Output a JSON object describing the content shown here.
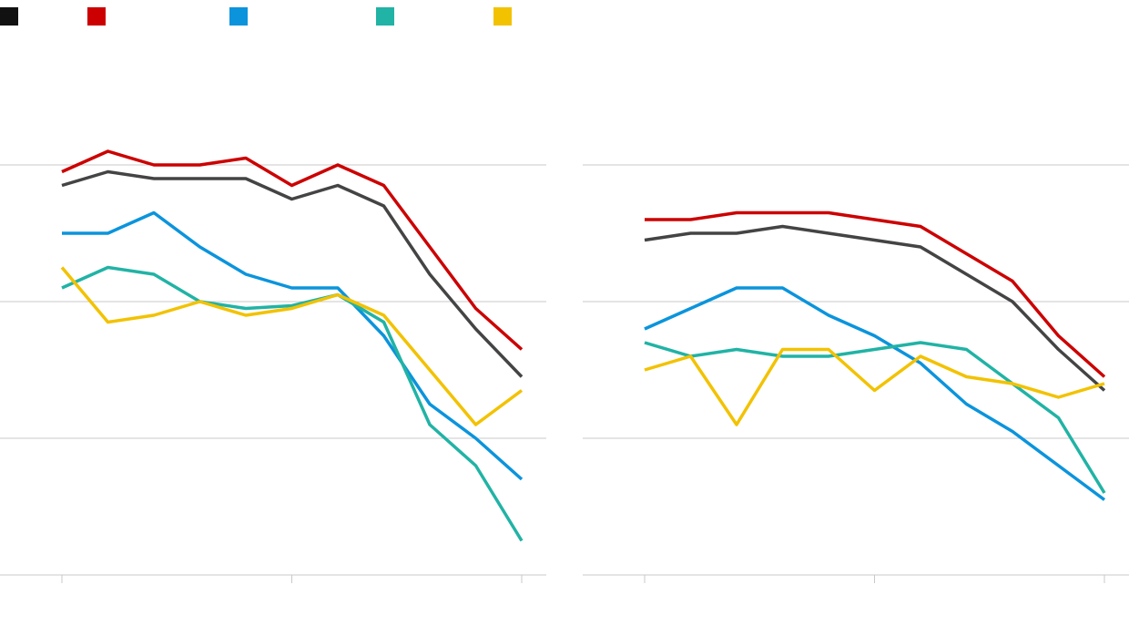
{
  "legend": [
    {
      "color": "#111111",
      "label": ""
    },
    {
      "color": "#cc0000",
      "label": ""
    },
    {
      "color": "#0b94dc",
      "label": ""
    },
    {
      "color": "#21b3a5",
      "label": ""
    },
    {
      "color": "#f2c200",
      "label": ""
    }
  ],
  "chart_data": [
    {
      "type": "line",
      "title": "",
      "xlabel": "",
      "ylabel": "",
      "x": [
        0,
        1,
        2,
        3,
        4,
        5,
        6,
        7,
        8,
        9,
        10
      ],
      "x_ticks": [
        0,
        5,
        10
      ],
      "ylim": [
        0,
        4
      ],
      "y_gridlines": [
        1,
        2,
        3
      ],
      "grid": true,
      "series": [
        {
          "color": "#444444",
          "values": [
            2.85,
            2.95,
            2.9,
            2.9,
            2.9,
            2.75,
            2.85,
            2.7,
            2.2,
            1.8,
            1.45
          ]
        },
        {
          "color": "#cc0000",
          "values": [
            2.95,
            3.1,
            3.0,
            3.0,
            3.05,
            2.85,
            3.0,
            2.85,
            2.4,
            1.95,
            1.65
          ]
        },
        {
          "color": "#0b94dc",
          "values": [
            2.5,
            2.5,
            2.65,
            2.4,
            2.2,
            2.1,
            2.1,
            1.75,
            1.25,
            1.0,
            0.7
          ]
        },
        {
          "color": "#21b3a5",
          "values": [
            2.1,
            2.25,
            2.2,
            2.0,
            1.95,
            1.97,
            2.05,
            1.85,
            1.1,
            0.8,
            0.25
          ]
        },
        {
          "color": "#f2c200",
          "values": [
            2.25,
            1.85,
            1.9,
            2.0,
            1.9,
            1.95,
            2.05,
            1.9,
            1.5,
            1.1,
            1.35
          ]
        }
      ]
    },
    {
      "type": "line",
      "title": "",
      "xlabel": "",
      "ylabel": "",
      "x": [
        0,
        1,
        2,
        3,
        4,
        5,
        6,
        7,
        8,
        9,
        10
      ],
      "x_ticks": [
        0,
        5,
        10
      ],
      "ylim": [
        0,
        4
      ],
      "y_gridlines": [
        1,
        2,
        3
      ],
      "grid": true,
      "series": [
        {
          "color": "#444444",
          "values": [
            2.45,
            2.5,
            2.5,
            2.55,
            2.5,
            2.45,
            2.4,
            2.2,
            2.0,
            1.65,
            1.35
          ]
        },
        {
          "color": "#cc0000",
          "values": [
            2.6,
            2.6,
            2.65,
            2.65,
            2.65,
            2.6,
            2.55,
            2.35,
            2.15,
            1.75,
            1.45
          ]
        },
        {
          "color": "#0b94dc",
          "values": [
            1.8,
            1.95,
            2.1,
            2.1,
            1.9,
            1.75,
            1.55,
            1.25,
            1.05,
            0.8,
            0.55
          ]
        },
        {
          "color": "#21b3a5",
          "values": [
            1.7,
            1.6,
            1.65,
            1.6,
            1.6,
            1.65,
            1.7,
            1.65,
            1.4,
            1.15,
            0.6
          ]
        },
        {
          "color": "#f2c200",
          "values": [
            1.5,
            1.6,
            1.1,
            1.65,
            1.65,
            1.35,
            1.6,
            1.45,
            1.4,
            1.3,
            1.4
          ]
        }
      ]
    }
  ]
}
